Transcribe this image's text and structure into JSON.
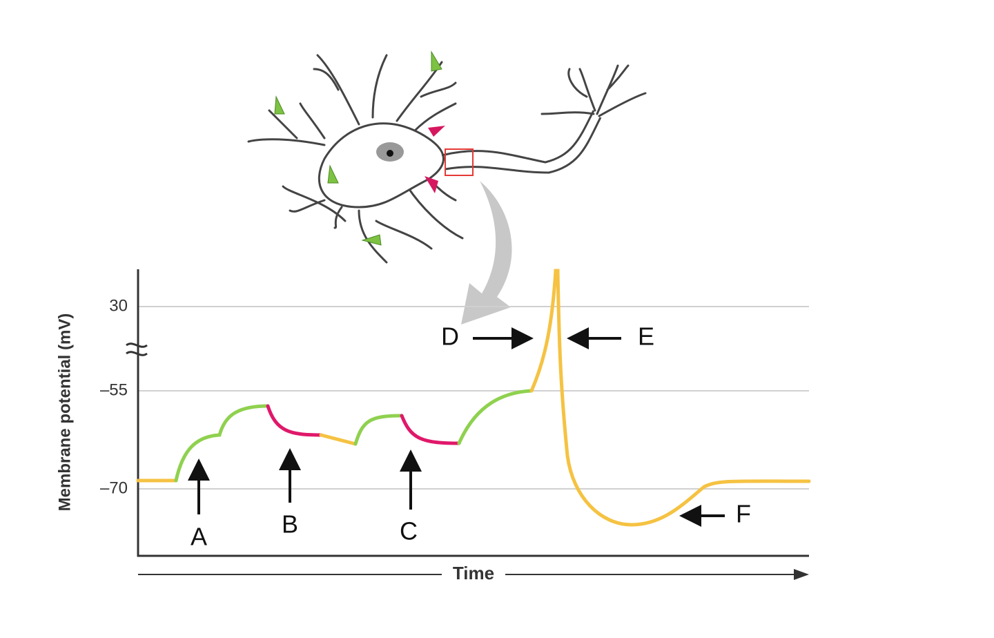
{
  "graph": {
    "y_axis_label": "Membrane potential (mV)",
    "x_axis_label": "Time",
    "yticks": [
      "30",
      "–55",
      "–70"
    ],
    "annotations": [
      "A",
      "B",
      "C",
      "D",
      "E",
      "F"
    ]
  }
}
